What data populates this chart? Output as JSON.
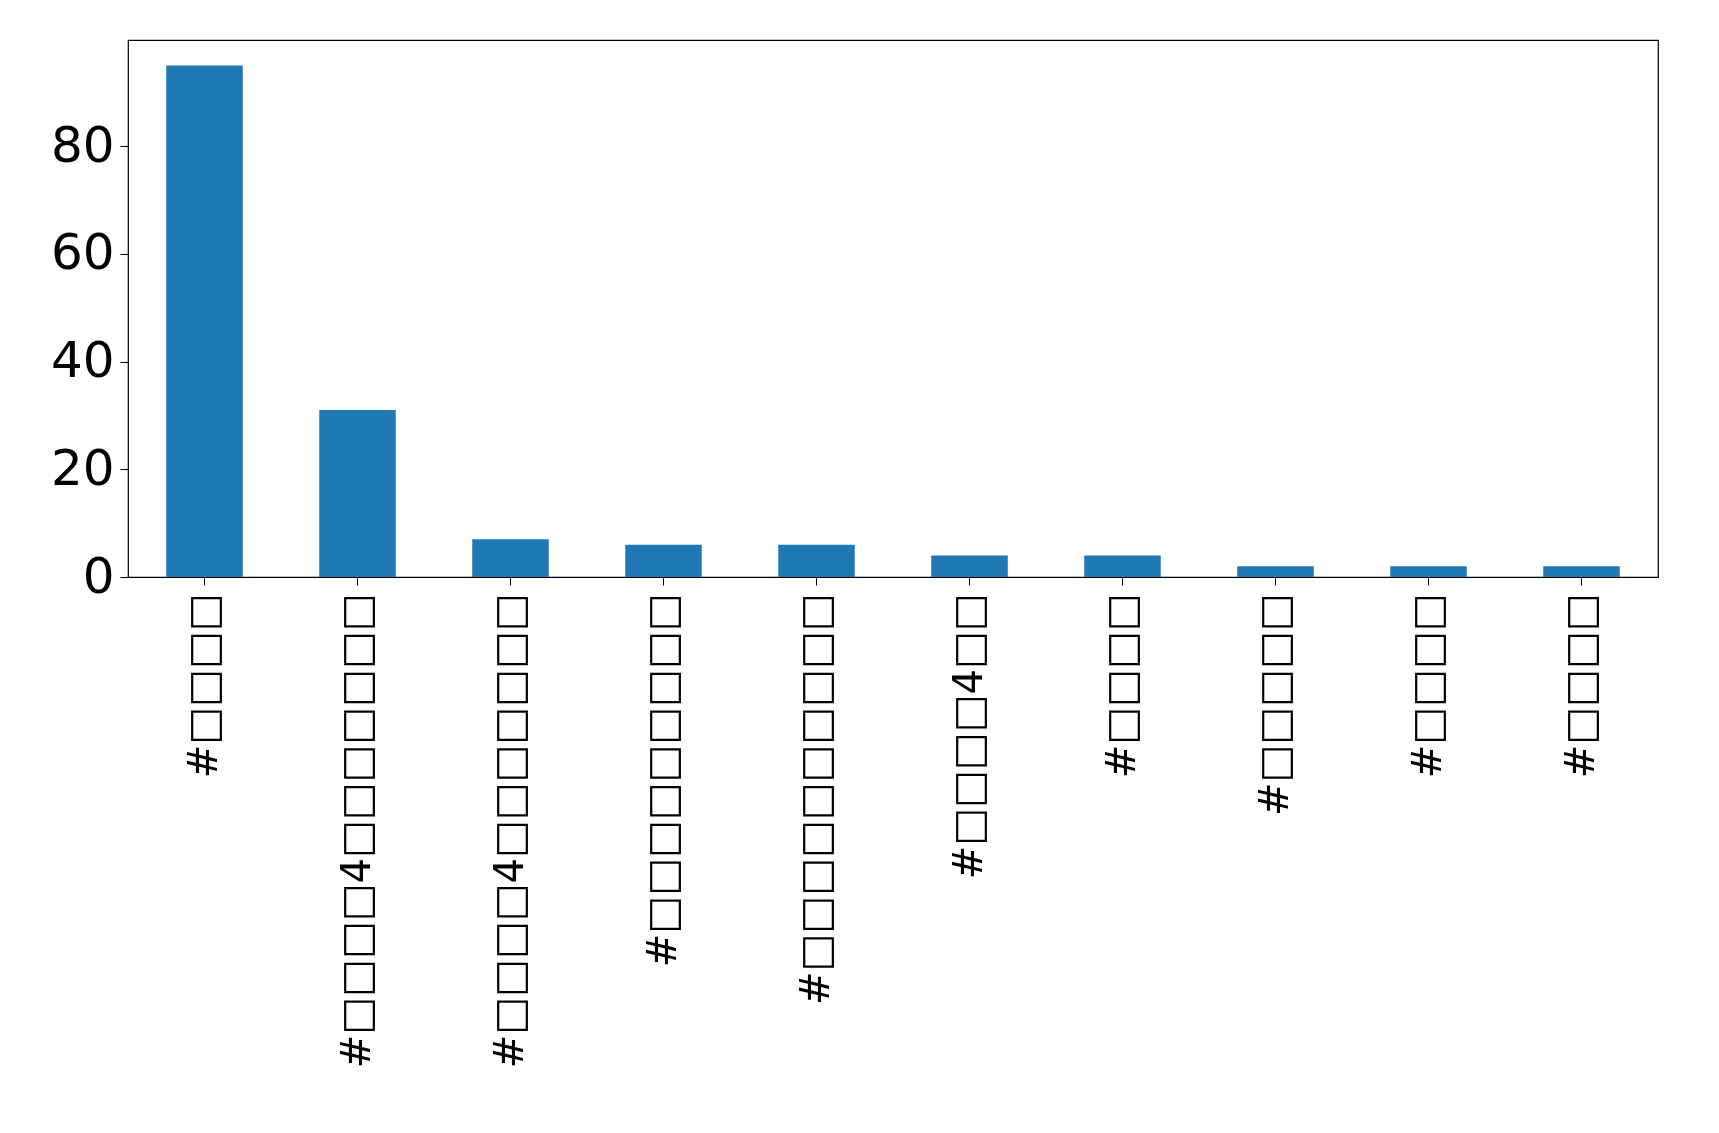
{
  "chart_data": {
    "type": "bar",
    "categories": [
      "#□□□□",
      "#□□□□4□□□□□□□",
      "#□□□□4□□□□□□□",
      "#□□□□□□□□□",
      "#□□□□□□□□□□",
      "#□□□□4□□",
      "#□□□□",
      "#□□□□□",
      "#□□□□",
      "#□□□□"
    ],
    "values": [
      95,
      31,
      7,
      6,
      6,
      4,
      4,
      2,
      2,
      2
    ],
    "color": "#1f77b4",
    "ylim": [
      0,
      99.75
    ],
    "yticks": [
      0,
      20,
      40,
      60,
      80
    ],
    "grid": false
  }
}
